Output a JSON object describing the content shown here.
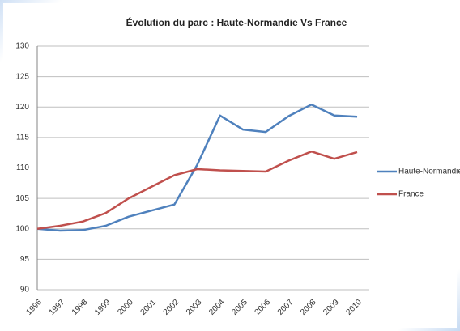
{
  "chart_data": {
    "type": "line",
    "title": "Évolution du parc : Haute-Normandie Vs France",
    "categories": [
      "1996",
      "1997",
      "1998",
      "1999",
      "2000",
      "2001",
      "2002",
      "2003",
      "2004",
      "2005",
      "2006",
      "2007",
      "2008",
      "2009",
      "2010"
    ],
    "series": [
      {
        "name": "Haute-Normandie",
        "color": "#4f81bd",
        "values": [
          100,
          99.7,
          99.8,
          100.5,
          102,
          103,
          104,
          110.5,
          118.6,
          116.3,
          115.9,
          118.5,
          120.4,
          118.6,
          118.4
        ]
      },
      {
        "name": "France",
        "color": "#c0504d",
        "values": [
          100,
          100.5,
          101.2,
          102.6,
          105,
          106.9,
          108.8,
          109.8,
          109.6,
          109.5,
          109.4,
          111.2,
          112.7,
          111.5,
          112.6
        ]
      }
    ],
    "ylim": [
      90,
      130
    ],
    "yticks": [
      90,
      95,
      100,
      105,
      110,
      115,
      120,
      125,
      130
    ],
    "grid": true,
    "legend": "right"
  }
}
